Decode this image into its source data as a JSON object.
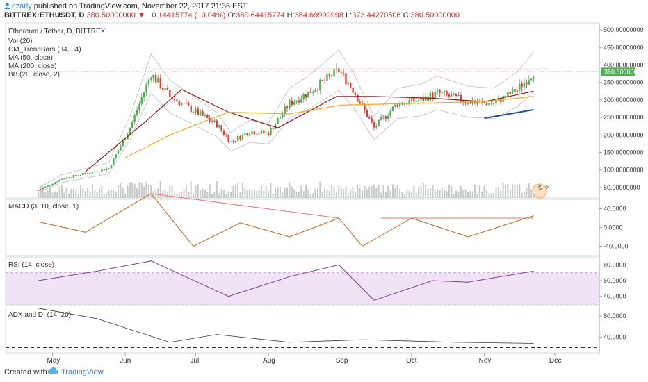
{
  "header": {
    "user": "czarly",
    "published": "published on TradingView.com, November 22, 2017 21:36 EST",
    "symbol": "BITTREX:ETHUSDT, D",
    "last": "380.50000000",
    "change": "−0.14415774 (−0.04%)",
    "ohlc_o_label": "O:",
    "ohlc_o": "380.64415774",
    "ohlc_h_label": "H:",
    "ohlc_h": "384.69999998",
    "ohlc_l_label": "L:",
    "ohlc_l": "373.44270506",
    "ohlc_c_label": "C:",
    "ohlc_c": "380.50000000"
  },
  "legend": {
    "title": "Ethereum / Tether, D, BITTREX",
    "items": [
      "Vol (20)",
      "CM_TrendBars (34, 34)",
      "MA (50, close)",
      "MA (200, close)",
      "BB (20, close, 2)"
    ]
  },
  "price_axis": {
    "ticks": [
      "500.00000000",
      "450.00000000",
      "400.00000000",
      "350.00000000",
      "300.00000000",
      "250.00000000",
      "200.00000000",
      "150.00000000",
      "100.00000000",
      "50.00000000"
    ],
    "tick_values": [
      500,
      450,
      400,
      350,
      300,
      250,
      200,
      150,
      100,
      50
    ],
    "last_label": "380.50000000",
    "last_value": 380.5
  },
  "panes": {
    "macd": {
      "label": "MACD (3, 10, close, 1)",
      "ticks": [
        "40.0000",
        "0.0000",
        "-40.0000"
      ],
      "tick_values": [
        40,
        0,
        -40
      ]
    },
    "rsi": {
      "label": "RSI (14, close)",
      "ticks": [
        "80.0000",
        "60.0000",
        "40.0000"
      ],
      "tick_values": [
        80,
        60,
        40
      ]
    },
    "adx": {
      "label": "ADX and DI (14, 20)",
      "ticks": [
        "80.0000",
        "40.0000"
      ],
      "tick_values": [
        80,
        40
      ]
    }
  },
  "time_axis": {
    "labels": [
      "May",
      "Jun",
      "Jul",
      "Aug",
      "Sep",
      "Oct",
      "Nov",
      "Dec"
    ]
  },
  "badge": {
    "a": "5",
    "b": "2"
  },
  "footer": {
    "created": "Created with",
    "brand": "TradingView"
  },
  "colors": {
    "up": "#4caf50",
    "down": "#e53935",
    "ma50": "#8b1a1a",
    "ma200": "#f5a623",
    "bb": "#bdbdbd",
    "trendline": "#e57373",
    "price_line": "#4caf50",
    "macd": "#c0661c",
    "rsi": "#7b3f8f",
    "rsi_band": "#efe3f5",
    "adx": "#333333",
    "volume": "#c8c8c8"
  },
  "chart_data": {
    "type": "line",
    "series": [
      {
        "name": "Ethereum / Tether, D, BITTREX",
        "x": [
          "2017-04-25",
          "2017-05-05",
          "2017-05-15",
          "2017-05-25",
          "2017-06-03",
          "2017-06-12",
          "2017-06-20",
          "2017-06-30",
          "2017-07-10",
          "2017-07-16",
          "2017-07-24",
          "2017-08-01",
          "2017-08-10",
          "2017-08-18",
          "2017-08-31",
          "2017-09-06",
          "2017-09-15",
          "2017-09-25",
          "2017-10-05",
          "2017-10-12",
          "2017-10-25",
          "2017-11-05",
          "2017-11-15",
          "2017-11-22"
        ],
        "values": [
          42,
          75,
          90,
          105,
          220,
          375,
          310,
          270,
          230,
          180,
          210,
          205,
          290,
          320,
          385,
          330,
          220,
          290,
          300,
          320,
          295,
          290,
          330,
          380
        ]
      },
      {
        "name": "MA (50, close)",
        "x": [
          "2017-05-15",
          "2017-06-10",
          "2017-06-25",
          "2017-07-15",
          "2017-08-05",
          "2017-08-30",
          "2017-09-15",
          "2017-10-10",
          "2017-11-01",
          "2017-11-22"
        ],
        "values": [
          95,
          240,
          330,
          265,
          220,
          310,
          310,
          305,
          295,
          325
        ]
      },
      {
        "name": "MA (200, close)",
        "x": [
          "2017-06-01",
          "2017-06-20",
          "2017-07-15",
          "2017-08-10",
          "2017-09-01",
          "2017-10-01",
          "2017-11-01",
          "2017-11-22"
        ],
        "values": [
          135,
          200,
          265,
          260,
          285,
          290,
          295,
          310
        ]
      },
      {
        "name": "MACD (3, 10, close, 1)",
        "x": [
          "2017-04-25",
          "2017-05-15",
          "2017-06-12",
          "2017-06-30",
          "2017-07-20",
          "2017-08-10",
          "2017-08-31",
          "2017-09-10",
          "2017-10-01",
          "2017-10-25",
          "2017-11-22"
        ],
        "values": [
          12,
          -10,
          72,
          -40,
          10,
          -20,
          20,
          -40,
          20,
          -20,
          25
        ]
      },
      {
        "name": "RSI (14, close)",
        "x": [
          "2017-04-25",
          "2017-05-20",
          "2017-06-12",
          "2017-07-15",
          "2017-08-10",
          "2017-08-31",
          "2017-09-15",
          "2017-10-10",
          "2017-10-25",
          "2017-11-22"
        ],
        "values": [
          60,
          72,
          85,
          40,
          65,
          80,
          35,
          60,
          58,
          72
        ]
      },
      {
        "name": "ADX and DI (14, 20)",
        "x": [
          "2017-04-25",
          "2017-05-20",
          "2017-06-20",
          "2017-07-10",
          "2017-08-10",
          "2017-09-10",
          "2017-10-20",
          "2017-11-22"
        ],
        "values": [
          95,
          75,
          30,
          45,
          30,
          35,
          30,
          28
        ]
      }
    ],
    "y_price_range": [
      20,
      520
    ],
    "x_range": [
      "2017-04-11",
      "2017-12-20"
    ]
  }
}
